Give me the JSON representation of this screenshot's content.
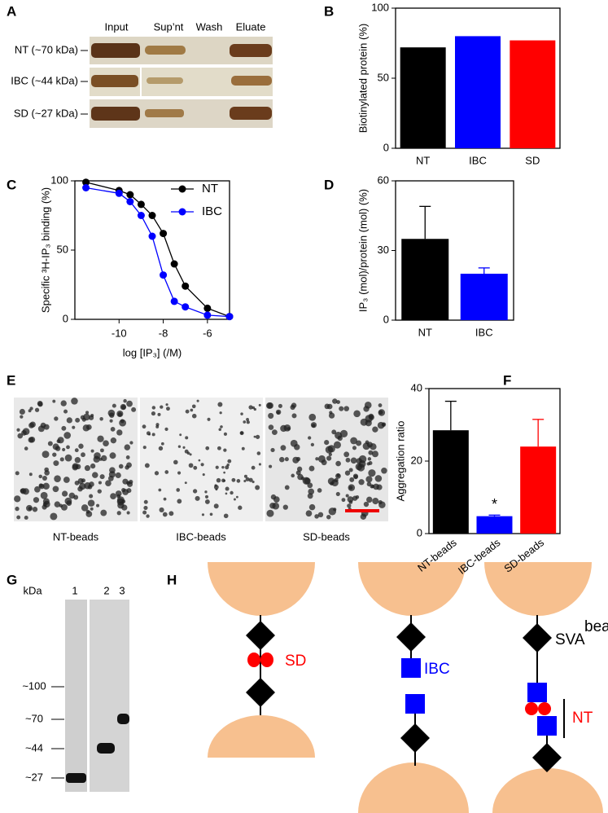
{
  "panel_labels": [
    "A",
    "B",
    "C",
    "D",
    "E",
    "F",
    "G",
    "H"
  ],
  "blot_a": {
    "columns": [
      "Input",
      "Sup’nt",
      "Wash",
      "Eluate"
    ],
    "rows": [
      "NT (~70 kDa)",
      "IBC (~44 kDa)",
      "SD (~27 kDa)"
    ]
  },
  "chart_data": [
    {
      "type": "bar",
      "ylabel": "Biotinylated protein (%)",
      "categories": [
        "NT",
        "IBC",
        "SD"
      ],
      "values": [
        72,
        80,
        77
      ],
      "colors": [
        "#000000",
        "#0000ff",
        "#ff0000"
      ],
      "ylim": [
        0,
        100
      ],
      "yticks": [
        0,
        50,
        100
      ]
    },
    {
      "type": "line",
      "xlabel": "log [IP₃] (/M)",
      "ylabel": "Specific ³H-IP₃ binding (%)",
      "xlim": [
        -12,
        -5
      ],
      "xticks": [
        -10,
        -8,
        -6
      ],
      "ylim": [
        0,
        100
      ],
      "yticks": [
        0,
        50,
        100
      ],
      "legend": "upper right",
      "series": [
        {
          "name": "NT",
          "color": "#000000",
          "x": [
            -11.5,
            -10,
            -9.5,
            -9,
            -8.5,
            -8,
            -7.5,
            -7,
            -6,
            -5
          ],
          "values": [
            99,
            93,
            90,
            83,
            75,
            62,
            40,
            24,
            8,
            2
          ]
        },
        {
          "name": "IBC",
          "color": "#0000ff",
          "x": [
            -11.5,
            -10,
            -9.5,
            -9,
            -8.5,
            -8,
            -7.5,
            -7,
            -6,
            -5
          ],
          "values": [
            95,
            91,
            85,
            75,
            60,
            32,
            13,
            9,
            3,
            2
          ]
        }
      ]
    },
    {
      "type": "bar",
      "ylabel": "IP₃ (mol)/protein (mol) (%)",
      "categories": [
        "NT",
        "IBC"
      ],
      "values": [
        35,
        20
      ],
      "errors": [
        14,
        2.5
      ],
      "colors": [
        "#000000",
        "#0000ff"
      ],
      "ylim": [
        0,
        60
      ],
      "yticks": [
        0,
        30,
        60
      ]
    },
    {
      "type": "bar",
      "ylabel": "Aggregation ratio",
      "categories": [
        "NT-beads",
        "IBC-beads",
        "SD-beads"
      ],
      "values": [
        28.5,
        4.8,
        24
      ],
      "errors": [
        8,
        0.3,
        7.5
      ],
      "colors": [
        "#000000",
        "#0000ff",
        "#ff0000"
      ],
      "ylim": [
        0,
        40
      ],
      "yticks": [
        0,
        20,
        40
      ],
      "annotation": {
        "text": "*",
        "category": "IBC-beads"
      }
    }
  ],
  "images_e": {
    "captions": [
      "NT-beads",
      "IBC-beads",
      "SD-beads"
    ]
  },
  "blot_g": {
    "unit": "kDa",
    "lanes": [
      "1",
      "2",
      "3"
    ],
    "markers": [
      "~100",
      "~70",
      "~44",
      "~27"
    ]
  },
  "diagram_h": {
    "labels": [
      "SD",
      "IBC",
      "bead",
      "SVA",
      "NT"
    ]
  }
}
